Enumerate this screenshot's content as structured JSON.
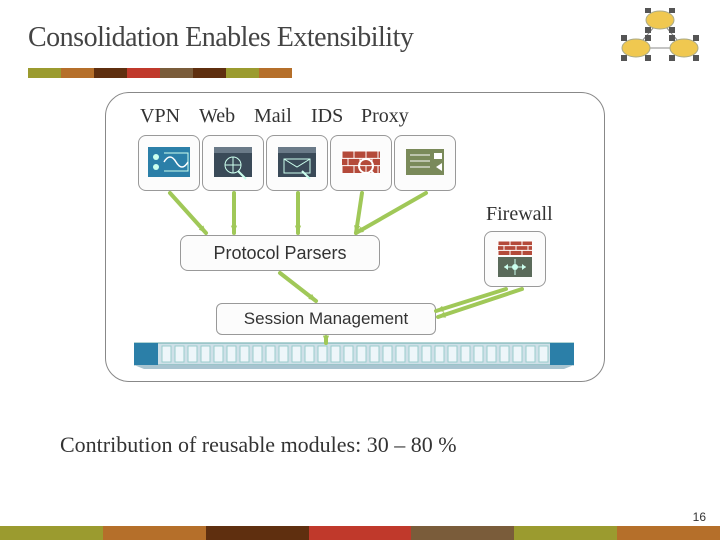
{
  "title": "Consolidation Enables Extensibility",
  "page_number": "16",
  "labels": {
    "vpn": "VPN",
    "web": "Web",
    "mail": "Mail",
    "ids": "IDS",
    "proxy": "Proxy",
    "firewall": "Firewall",
    "parsers": "Protocol Parsers",
    "session": "Session Management"
  },
  "contribution_text": "Contribution of reusable modules:  30 – 80 %",
  "stripe_colors": [
    "#9b9b2f",
    "#b56f2a",
    "#5f2f0f",
    "#c0392b",
    "#7a5c3a",
    "#5f2f0f",
    "#9b9b2f",
    "#b56f2a"
  ],
  "bottom_stripe": [
    "#9b9b2f",
    "#b56f2a",
    "#5f2f0f",
    "#c0392b",
    "#7a5c3a",
    "#9b9b2f",
    "#b56f2a"
  ],
  "icons": {
    "vpn_color": "#2b7fa8",
    "web_color": "#3a4a58",
    "mail_color": "#3a4a58",
    "ids_color": "#b44a3a",
    "proxy_color": "#7a8a5a",
    "firewall_color": "#b44a3a",
    "chassis_body": "#cfe0e8",
    "chassis_trim": "#2b7fa8",
    "accent": "#a0c858"
  },
  "topology": {
    "node_fill": "#f0c850",
    "link_color": "#888",
    "square_fill": "#555"
  },
  "arrows": {
    "color": "#a0c858"
  },
  "label_gaps": {
    "vpn_w": 54,
    "web_w": 50,
    "mail_w": 52,
    "ids_w": 45,
    "proxy_w": 60
  }
}
